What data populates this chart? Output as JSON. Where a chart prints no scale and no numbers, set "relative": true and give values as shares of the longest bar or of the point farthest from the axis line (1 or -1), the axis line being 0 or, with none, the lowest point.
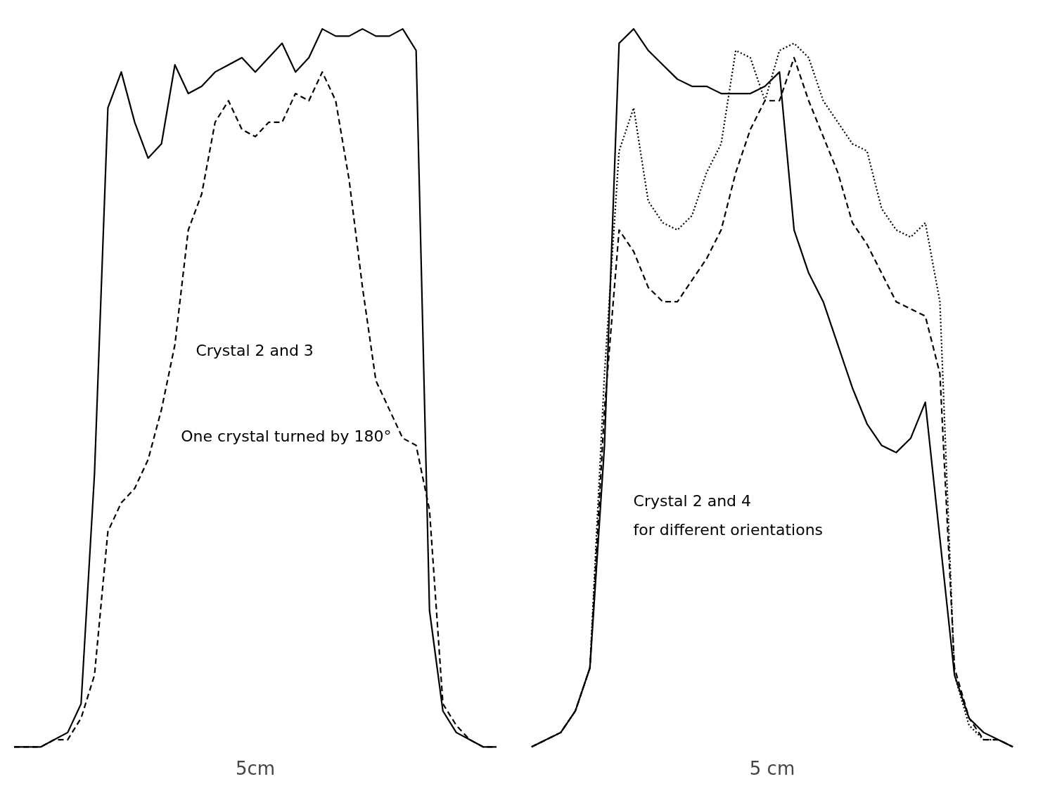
{
  "chart_data": [
    {
      "type": "line",
      "relative": true,
      "grid": false,
      "marker": "none",
      "xlabel": "5cm",
      "categories": [
        null,
        null,
        null,
        null,
        null,
        null,
        null,
        null,
        null,
        null,
        null,
        null,
        null,
        null,
        null,
        null,
        null,
        null,
        null,
        null,
        null,
        null,
        null,
        null,
        null,
        null,
        null,
        null,
        null,
        null,
        null,
        null,
        null,
        null,
        null,
        null,
        null
      ],
      "annotations": [
        "Crystal 2 and 3",
        "One crystal turned by 180°"
      ],
      "series": [
        {
          "color": "#000000",
          "line_style": "solid",
          "values": [
            0,
            0,
            0,
            0.01,
            0.02,
            0.06,
            0.38,
            0.89,
            0.94,
            0.87,
            0.82,
            0.84,
            0.95,
            0.91,
            0.92,
            0.94,
            0.95,
            0.96,
            0.94,
            0.96,
            0.98,
            0.94,
            0.96,
            1.0,
            0.99,
            0.99,
            1.0,
            0.99,
            0.99,
            1.0,
            0.97,
            0.19,
            0.05,
            0.02,
            0.01,
            0,
            0
          ]
        },
        {
          "color": "#000000",
          "line_style": "dashed",
          "values": [
            0,
            0,
            0,
            0.01,
            0.01,
            0.04,
            0.1,
            0.3,
            0.34,
            0.36,
            0.4,
            0.47,
            0.56,
            0.72,
            0.77,
            0.87,
            0.9,
            0.86,
            0.85,
            0.87,
            0.87,
            0.91,
            0.9,
            0.94,
            0.9,
            0.79,
            0.64,
            0.51,
            0.47,
            0.43,
            0.42,
            0.33,
            0.06,
            0.03,
            0.01,
            0,
            0
          ]
        }
      ]
    },
    {
      "type": "line",
      "relative": true,
      "grid": false,
      "marker": "none",
      "xlabel": "5 cm",
      "categories": [
        null,
        null,
        null,
        null,
        null,
        null,
        null,
        null,
        null,
        null,
        null,
        null,
        null,
        null,
        null,
        null,
        null,
        null,
        null,
        null,
        null,
        null,
        null,
        null,
        null,
        null,
        null,
        null,
        null,
        null,
        null,
        null,
        null,
        null
      ],
      "annotations": [
        "Crystal 2 and 4",
        "for different orientations"
      ],
      "series": [
        {
          "color": "#000000",
          "line_style": "solid",
          "values": [
            0,
            0.01,
            0.02,
            0.05,
            0.11,
            0.42,
            0.98,
            1.0,
            0.97,
            0.95,
            0.93,
            0.92,
            0.92,
            0.91,
            0.91,
            0.91,
            0.92,
            0.94,
            0.72,
            0.66,
            0.62,
            0.56,
            0.5,
            0.45,
            0.42,
            0.41,
            0.43,
            0.48,
            0.29,
            0.1,
            0.04,
            0.02,
            0.01,
            0
          ]
        },
        {
          "color": "#000000",
          "line_style": "dotted",
          "values": [
            0,
            0.01,
            0.02,
            0.05,
            0.11,
            0.52,
            0.83,
            0.89,
            0.76,
            0.73,
            0.72,
            0.74,
            0.8,
            0.84,
            0.97,
            0.96,
            0.9,
            0.97,
            0.98,
            0.96,
            0.9,
            0.87,
            0.84,
            0.83,
            0.75,
            0.72,
            0.71,
            0.73,
            0.62,
            0.1,
            0.03,
            0.01,
            0.01,
            0
          ]
        },
        {
          "color": "#000000",
          "line_style": "dashed",
          "values": [
            0,
            0.01,
            0.02,
            0.05,
            0.11,
            0.47,
            0.72,
            0.69,
            0.64,
            0.62,
            0.62,
            0.65,
            0.68,
            0.72,
            0.8,
            0.86,
            0.9,
            0.9,
            0.96,
            0.9,
            0.85,
            0.8,
            0.73,
            0.7,
            0.66,
            0.62,
            0.61,
            0.6,
            0.52,
            0.11,
            0.04,
            0.01,
            0.01,
            0
          ]
        }
      ]
    }
  ]
}
